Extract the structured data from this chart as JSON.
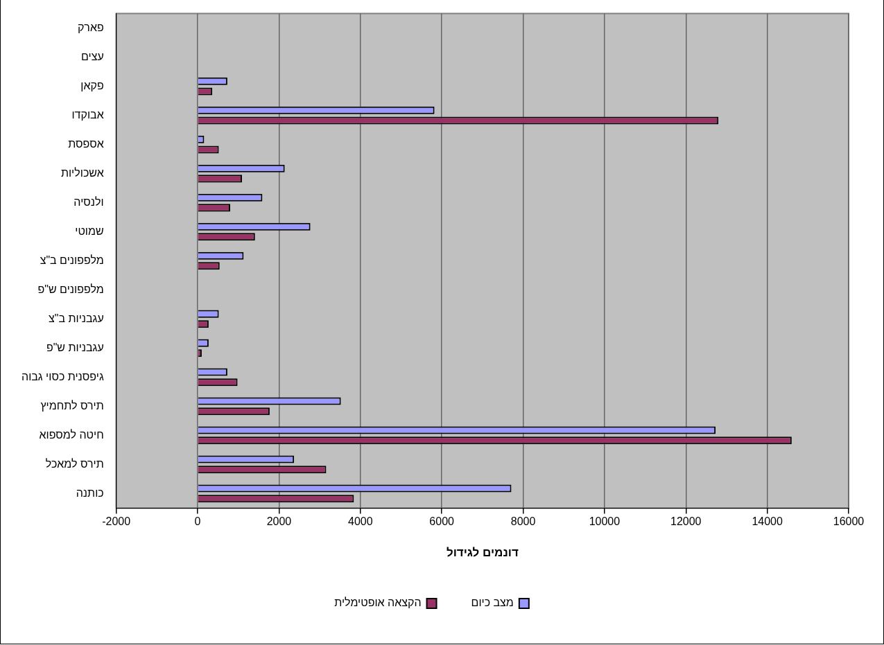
{
  "chart_data": {
    "type": "bar",
    "orientation": "horizontal",
    "xlabel": "דונמים לגידול",
    "categories": [
      "פארק",
      "עצים",
      "פקאן",
      "אבוקדו",
      "אספסת",
      "אשכוליות",
      "ולנסיה",
      "שמוטי",
      "מלפפונים ב\"צ",
      "מלפפונים ש\"פ",
      "עגבניות ב\"צ",
      "עגבניות ש\"פ",
      "גיפסנית כסוי גבוה",
      "תירס לתחמיץ",
      "חיטה למספוא",
      "תירס למאכל",
      "כותנה"
    ],
    "series": [
      {
        "name": "מצב כיום",
        "color": "#9999ff",
        "values": [
          0,
          0,
          730,
          5820,
          160,
          2140,
          1590,
          2770,
          1130,
          0,
          520,
          270,
          730,
          3520,
          12730,
          2370,
          7710
        ]
      },
      {
        "name": "הקצאה אופטימלית",
        "color": "#993366",
        "values": [
          0,
          0,
          360,
          12800,
          520,
          1090,
          800,
          1410,
          540,
          0,
          270,
          100,
          980,
          1770,
          14600,
          3160,
          3840
        ]
      }
    ],
    "xlim": [
      -2000,
      16000
    ],
    "xticks": [
      -2000,
      0,
      2000,
      4000,
      6000,
      8000,
      10000,
      12000,
      14000,
      16000
    ],
    "grid": "x",
    "legend": "bottom"
  }
}
